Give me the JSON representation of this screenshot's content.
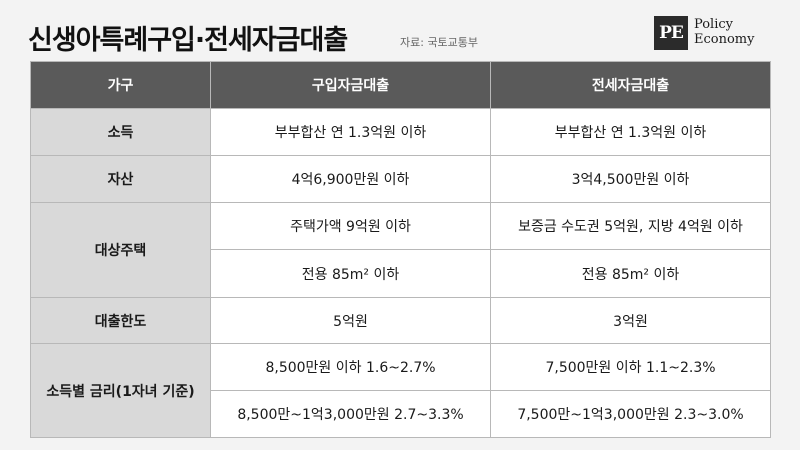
{
  "header": {
    "title": "신생아특례구입·전세자금대출",
    "source": "자료: 국토교통부"
  },
  "logo": {
    "mark": "PE",
    "line1": "Policy",
    "line2": "Economy"
  },
  "table": {
    "columns": [
      "가구",
      "구입자금대출",
      "전세자금대출"
    ],
    "income": {
      "label": "소득",
      "purchase": "부부합산 연 1.3억원 이하",
      "jeonse": "부부합산 연 1.3억원 이하"
    },
    "assets": {
      "label": "자산",
      "purchase": "4억6,900만원 이하",
      "jeonse": "3억4,500만원 이하"
    },
    "housing": {
      "label": "대상주택",
      "price_purchase": "주택가액 9억원 이하",
      "price_jeonse": "보증금 수도권 5억원, 지방 4억원 이하",
      "area_purchase": "전용 85m² 이하",
      "area_jeonse": "전용 85m² 이하"
    },
    "limit": {
      "label": "대출한도",
      "purchase": "5억원",
      "jeonse": "3억원"
    },
    "rate": {
      "label": "소득별 금리(1자녀 기준)",
      "low_purchase": "8,500만원 이하 1.6~2.7%",
      "low_jeonse": "7,500만원 이하 1.1~2.3%",
      "high_purchase": "8,500만~1억3,000만원 2.7~3.3%",
      "high_jeonse": "7,500만~1억3,000만원 2.3~3.0%"
    }
  }
}
